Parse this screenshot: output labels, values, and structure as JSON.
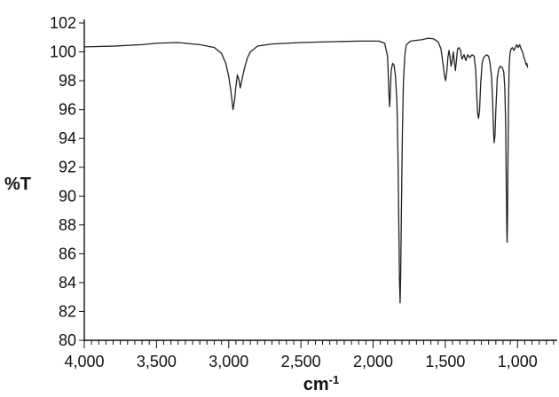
{
  "chart_data": {
    "type": "line",
    "title": "",
    "xlabel": "cm",
    "xlabel_superscript": "-1",
    "ylabel": "%T",
    "xlim": [
      4000,
      725
    ],
    "ylim": [
      80,
      102
    ],
    "x_reversed": true,
    "grid": false,
    "x_ticks": [
      4000,
      3500,
      3000,
      2500,
      2000,
      1500,
      1000
    ],
    "x_tick_labels": [
      "4,000",
      "3,500",
      "3,000",
      "2,500",
      "2,000",
      "1,500",
      "1,000"
    ],
    "y_ticks": [
      80,
      82,
      84,
      86,
      88,
      90,
      92,
      94,
      96,
      98,
      100,
      102
    ],
    "y_tick_labels": [
      "80",
      "82",
      "84",
      "86",
      "88",
      "90",
      "92",
      "94",
      "96",
      "98",
      "100",
      "102"
    ],
    "series": [
      {
        "color": "#222222",
        "points": [
          [
            4000,
            100.35
          ],
          [
            3800,
            100.4
          ],
          [
            3600,
            100.5
          ],
          [
            3500,
            100.6
          ],
          [
            3350,
            100.65
          ],
          [
            3200,
            100.5
          ],
          [
            3100,
            100.3
          ],
          [
            3050,
            99.9
          ],
          [
            3020,
            99.2
          ],
          [
            3000,
            98.3
          ],
          [
            2985,
            97.3
          ],
          [
            2970,
            96.0
          ],
          [
            2960,
            96.6
          ],
          [
            2950,
            97.6
          ],
          [
            2940,
            98.4
          ],
          [
            2930,
            98.1
          ],
          [
            2920,
            97.5
          ],
          [
            2910,
            98.0
          ],
          [
            2890,
            98.9
          ],
          [
            2870,
            99.6
          ],
          [
            2850,
            100.0
          ],
          [
            2800,
            100.4
          ],
          [
            2700,
            100.55
          ],
          [
            2500,
            100.65
          ],
          [
            2300,
            100.7
          ],
          [
            2100,
            100.75
          ],
          [
            1960,
            100.75
          ],
          [
            1920,
            100.6
          ],
          [
            1900,
            99.7
          ],
          [
            1895,
            98.4
          ],
          [
            1890,
            97.0
          ],
          [
            1885,
            96.2
          ],
          [
            1880,
            97.4
          ],
          [
            1875,
            98.7
          ],
          [
            1865,
            99.2
          ],
          [
            1855,
            99.1
          ],
          [
            1845,
            98.3
          ],
          [
            1835,
            96.5
          ],
          [
            1828,
            93.0
          ],
          [
            1822,
            88.0
          ],
          [
            1817,
            84.0
          ],
          [
            1813,
            82.6
          ],
          [
            1809,
            84.5
          ],
          [
            1804,
            89.0
          ],
          [
            1797,
            94.5
          ],
          [
            1790,
            97.9
          ],
          [
            1780,
            99.8
          ],
          [
            1770,
            100.5
          ],
          [
            1740,
            100.75
          ],
          [
            1700,
            100.8
          ],
          [
            1660,
            100.85
          ],
          [
            1620,
            100.95
          ],
          [
            1580,
            100.9
          ],
          [
            1550,
            100.7
          ],
          [
            1530,
            100.2
          ],
          [
            1515,
            99.1
          ],
          [
            1505,
            98.3
          ],
          [
            1498,
            98.0
          ],
          [
            1490,
            98.6
          ],
          [
            1482,
            99.6
          ],
          [
            1475,
            100.1
          ],
          [
            1468,
            99.7
          ],
          [
            1460,
            99.0
          ],
          [
            1452,
            99.4
          ],
          [
            1445,
            100.0
          ],
          [
            1437,
            99.3
          ],
          [
            1430,
            98.7
          ],
          [
            1422,
            99.5
          ],
          [
            1415,
            100.2
          ],
          [
            1405,
            100.3
          ],
          [
            1395,
            100.1
          ],
          [
            1385,
            99.5
          ],
          [
            1370,
            99.8
          ],
          [
            1358,
            99.4
          ],
          [
            1345,
            99.8
          ],
          [
            1330,
            99.6
          ],
          [
            1315,
            99.8
          ],
          [
            1300,
            99.7
          ],
          [
            1290,
            98.8
          ],
          [
            1283,
            97.2
          ],
          [
            1276,
            95.7
          ],
          [
            1270,
            95.4
          ],
          [
            1263,
            95.9
          ],
          [
            1255,
            97.8
          ],
          [
            1245,
            99.2
          ],
          [
            1235,
            99.6
          ],
          [
            1215,
            99.8
          ],
          [
            1200,
            99.7
          ],
          [
            1190,
            99.2
          ],
          [
            1180,
            98.3
          ],
          [
            1172,
            96.5
          ],
          [
            1166,
            94.5
          ],
          [
            1162,
            93.7
          ],
          [
            1156,
            94.2
          ],
          [
            1150,
            96.0
          ],
          [
            1140,
            98.2
          ],
          [
            1130,
            98.8
          ],
          [
            1120,
            99.0
          ],
          [
            1105,
            98.9
          ],
          [
            1095,
            98.6
          ],
          [
            1088,
            97.5
          ],
          [
            1082,
            95.0
          ],
          [
            1078,
            91.0
          ],
          [
            1074,
            87.5
          ],
          [
            1072,
            86.8
          ],
          [
            1069,
            88.5
          ],
          [
            1066,
            92.5
          ],
          [
            1062,
            96.5
          ],
          [
            1058,
            99.0
          ],
          [
            1052,
            99.9
          ],
          [
            1045,
            100.2
          ],
          [
            1035,
            100.3
          ],
          [
            1025,
            100.1
          ],
          [
            1015,
            100.3
          ],
          [
            1005,
            100.5
          ],
          [
            995,
            100.3
          ],
          [
            985,
            100.5
          ],
          [
            975,
            100.2
          ],
          [
            965,
            100.0
          ],
          [
            955,
            99.6
          ],
          [
            945,
            99.3
          ],
          [
            940,
            99.1
          ],
          [
            935,
            99.2
          ],
          [
            930,
            98.9
          ]
        ]
      }
    ]
  }
}
